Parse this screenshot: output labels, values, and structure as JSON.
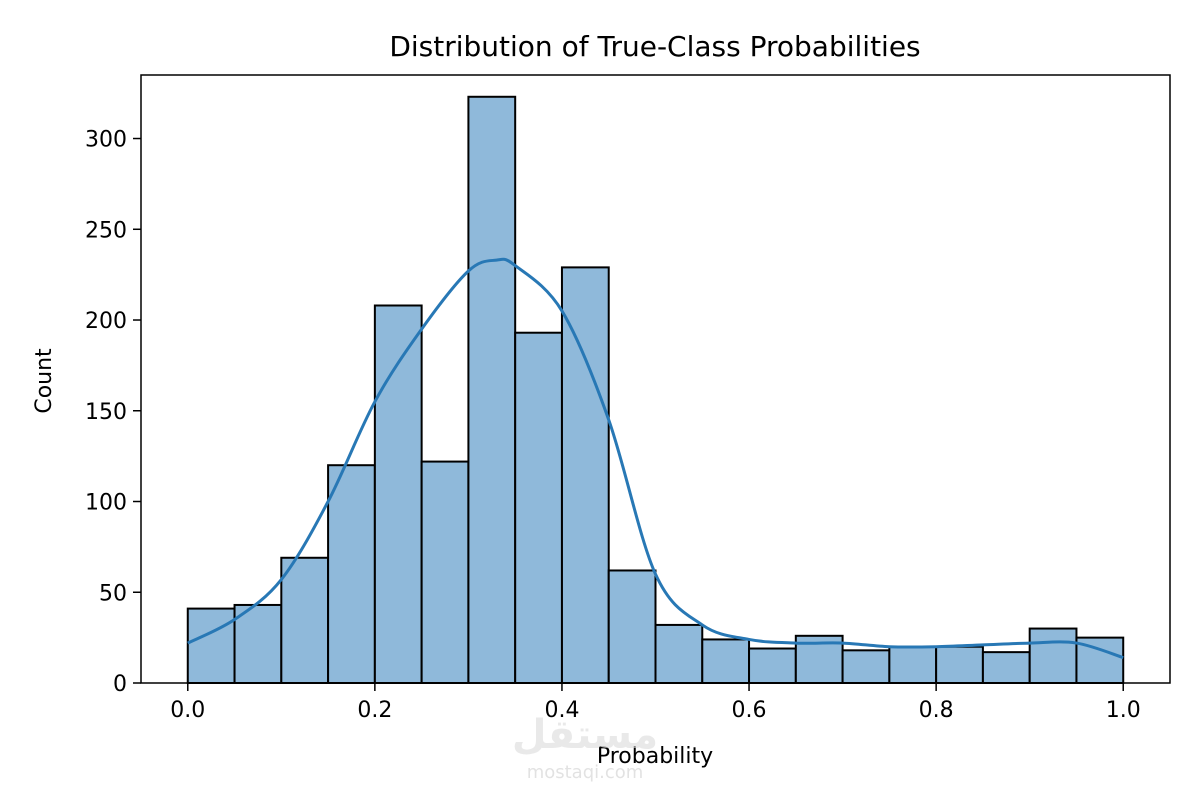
{
  "chart_data": {
    "type": "histogram",
    "title": "Distribution of True-Class Probabilities",
    "xlabel": "Probability",
    "ylabel": "Count",
    "xlim": [
      -0.05,
      1.05
    ],
    "ylim": [
      0,
      335
    ],
    "x_ticks": [
      0.0,
      0.2,
      0.4,
      0.6,
      0.8,
      1.0
    ],
    "x_tick_labels": [
      "0.0",
      "0.2",
      "0.4",
      "0.6",
      "0.8",
      "1.0"
    ],
    "y_ticks": [
      0,
      50,
      100,
      150,
      200,
      250,
      300
    ],
    "y_tick_labels": [
      "0",
      "50",
      "100",
      "150",
      "200",
      "250",
      "300"
    ],
    "bin_edges": [
      0.0,
      0.05,
      0.1,
      0.15,
      0.2,
      0.25,
      0.3,
      0.35,
      0.4,
      0.45,
      0.5,
      0.55,
      0.6,
      0.65,
      0.7,
      0.75,
      0.8,
      0.85,
      0.9,
      0.95,
      1.0
    ],
    "counts": [
      41,
      43,
      69,
      120,
      208,
      122,
      323,
      193,
      229,
      62,
      32,
      24,
      19,
      26,
      18,
      20,
      20,
      17,
      30,
      25
    ],
    "kde": {
      "x": [
        0.0,
        0.05,
        0.1,
        0.15,
        0.2,
        0.25,
        0.3,
        0.33,
        0.35,
        0.4,
        0.45,
        0.5,
        0.55,
        0.6,
        0.65,
        0.7,
        0.75,
        0.8,
        0.85,
        0.9,
        0.95,
        1.0
      ],
      "y": [
        22,
        35,
        57,
        100,
        155,
        195,
        227,
        233,
        230,
        205,
        145,
        60,
        32,
        24,
        22,
        22,
        20,
        20,
        21,
        22,
        22,
        14
      ]
    },
    "bar_fill": "#8fb9da",
    "bar_edge": "#000000",
    "kde_color": "#2878b5"
  },
  "watermark": {
    "text": "مستقل",
    "subtext": "mostaqi.com"
  }
}
